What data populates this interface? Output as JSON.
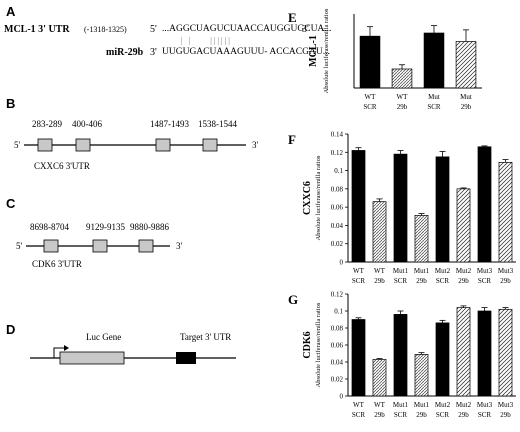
{
  "panels": {
    "A": {
      "letter": "A",
      "gene_label": "MCL-1 3' UTR",
      "position": "(-1318-1325)",
      "five_prime": "5'",
      "three_prime": "3'",
      "utr_seq": "...AGGCUAGUCUAACCAUGGUGCUA...",
      "mirna_label": "miR-29b",
      "mirna_seq": "UUGUGACUAAAGUUU- ACCACGAU...",
      "pair_marks": "|   |          | | | | | |"
    },
    "B": {
      "letter": "B",
      "gene_label": "CXXC6  3'UTR",
      "five_prime": "5'",
      "three_prime": "3'",
      "sites": [
        "283-289",
        "400-406",
        "1487-1493",
        "1538-1544"
      ]
    },
    "C": {
      "letter": "C",
      "gene_label": "CDK6  3'UTR",
      "five_prime": "5'",
      "three_prime": "3'",
      "sites": [
        "8698-8704",
        "9129-9135",
        "9880-9886"
      ]
    },
    "D": {
      "letter": "D",
      "luc_label": "Luc Gene",
      "target_label": "Target 3' UTR"
    }
  },
  "chart_data": [
    {
      "panel": "E",
      "type": "bar",
      "ylabel_gene": "MCL-1",
      "ylabel": "Absolute luciferase/renilla ratios",
      "categories": [
        [
          "WT",
          "SCR"
        ],
        [
          "WT",
          "29b"
        ],
        [
          "Mut",
          "SCR"
        ],
        [
          "Mut",
          "29b"
        ]
      ],
      "values": [
        4.9,
        1.8,
        5.2,
        4.4
      ],
      "errors": [
        0.9,
        0.4,
        0.7,
        1.1
      ],
      "patterns": [
        "solid",
        "dots",
        "solid",
        "hatch"
      ],
      "ylim": [
        0,
        7
      ],
      "yticks": []
    },
    {
      "panel": "F",
      "type": "bar",
      "ylabel_gene": "CXXC6",
      "ylabel": "Absolute  luciferase/renilla ratios",
      "categories": [
        [
          "WT",
          "SCR"
        ],
        [
          "WT",
          "29b"
        ],
        [
          "Mut1",
          "SCR"
        ],
        [
          "Mut1",
          "29b"
        ],
        [
          "Mut2",
          "SCR"
        ],
        [
          "Mut2",
          "29b"
        ],
        [
          "Mut3",
          "SCR"
        ],
        [
          "Mut3",
          "29b"
        ]
      ],
      "values": [
        0.122,
        0.066,
        0.118,
        0.051,
        0.115,
        0.08,
        0.126,
        0.109
      ],
      "errors": [
        0.003,
        0.003,
        0.004,
        0.002,
        0.006,
        0.001,
        0.001,
        0.003
      ],
      "patterns": [
        "solid",
        "dots",
        "solid",
        "dots",
        "solid",
        "hatch",
        "solid",
        "hatch"
      ],
      "ylim": [
        0,
        0.14
      ],
      "yticks": [
        "0",
        "0.02",
        "0.04",
        "0.06",
        "0.08",
        "0.1",
        "0.12",
        "0.14"
      ]
    },
    {
      "panel": "G",
      "type": "bar",
      "ylabel_gene": "CDK6",
      "ylabel": "Absolute luciferase/renilla ratios",
      "categories": [
        [
          "WT",
          "SCR"
        ],
        [
          "WT",
          "29b"
        ],
        [
          "Mut1",
          "SCR"
        ],
        [
          "Mut1",
          "29b"
        ],
        [
          "Mut2",
          "SCR"
        ],
        [
          "Mut2",
          "29b"
        ],
        [
          "Mut3",
          "SCR"
        ],
        [
          "Mut3",
          "29b"
        ]
      ],
      "values": [
        0.09,
        0.043,
        0.096,
        0.049,
        0.086,
        0.104,
        0.1,
        0.102
      ],
      "errors": [
        0.002,
        0.001,
        0.004,
        0.002,
        0.003,
        0.002,
        0.004,
        0.002
      ],
      "patterns": [
        "solid",
        "dots",
        "solid",
        "dots",
        "solid",
        "hatch",
        "solid",
        "hatch"
      ],
      "ylim": [
        0,
        0.12
      ],
      "yticks": [
        "0",
        "0.02",
        "0.04",
        "0.06",
        "0.08",
        "0.1",
        "0.12"
      ]
    }
  ],
  "chart_letters": [
    "E",
    "F",
    "G"
  ]
}
